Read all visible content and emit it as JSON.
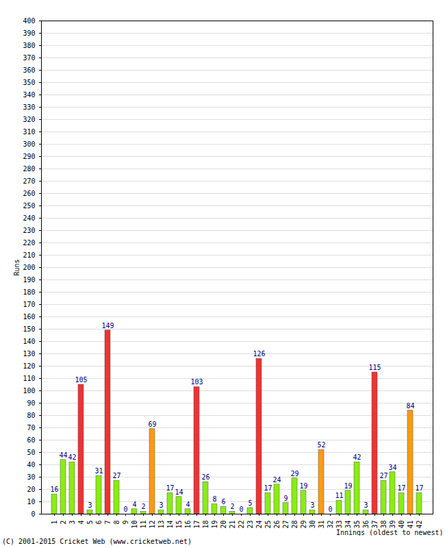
{
  "chart_data": {
    "type": "bar",
    "x_label": "Innings (oldest to newest)",
    "y_label": "Runs",
    "caption": "(C) 2001-2015 Cricket Web (www.cricketweb.net)",
    "categories": [
      "1",
      "2",
      "3",
      "4",
      "5",
      "6",
      "7",
      "8",
      "9",
      "10",
      "11",
      "12",
      "13",
      "14",
      "15",
      "16",
      "17",
      "18",
      "19",
      "20",
      "21",
      "22",
      "23",
      "24",
      "25",
      "26",
      "27",
      "28",
      "29",
      "30",
      "31",
      "32",
      "33",
      "34",
      "35",
      "36",
      "37",
      "38",
      "39",
      "40",
      "41",
      "42"
    ],
    "values": [
      16,
      44,
      42,
      105,
      3,
      31,
      149,
      27,
      0,
      4,
      2,
      69,
      3,
      17,
      14,
      4,
      103,
      26,
      8,
      6,
      2,
      0,
      5,
      126,
      17,
      24,
      9,
      29,
      19,
      3,
      52,
      0,
      11,
      19,
      42,
      3,
      115,
      27,
      34,
      17,
      84,
      17
    ],
    "colors": [
      "#88ee11",
      "#88ee11",
      "#88ee11",
      "#ee3333",
      "#88ee11",
      "#88ee11",
      "#ee3333",
      "#88ee11",
      "#88ee11",
      "#88ee11",
      "#88ee11",
      "#ff9911",
      "#88ee11",
      "#88ee11",
      "#88ee11",
      "#88ee11",
      "#ee3333",
      "#88ee11",
      "#88ee11",
      "#88ee11",
      "#88ee11",
      "#88ee11",
      "#88ee11",
      "#ee3333",
      "#88ee11",
      "#88ee11",
      "#88ee11",
      "#88ee11",
      "#88ee11",
      "#88ee11",
      "#ff9911",
      "#88ee11",
      "#88ee11",
      "#88ee11",
      "#88ee11",
      "#88ee11",
      "#ee3333",
      "#88ee11",
      "#88ee11",
      "#88ee11",
      "#ff9911",
      "#88ee11"
    ],
    "ylim": [
      0,
      400
    ],
    "yticks": [
      0,
      10,
      20,
      30,
      40,
      50,
      60,
      70,
      80,
      90,
      100,
      110,
      120,
      130,
      140,
      150,
      160,
      170,
      180,
      190,
      200,
      210,
      220,
      230,
      240,
      250,
      260,
      270,
      280,
      290,
      300,
      310,
      320,
      330,
      340,
      350,
      360,
      370,
      380,
      390,
      400
    ],
    "grid": true,
    "data_labels": true
  }
}
